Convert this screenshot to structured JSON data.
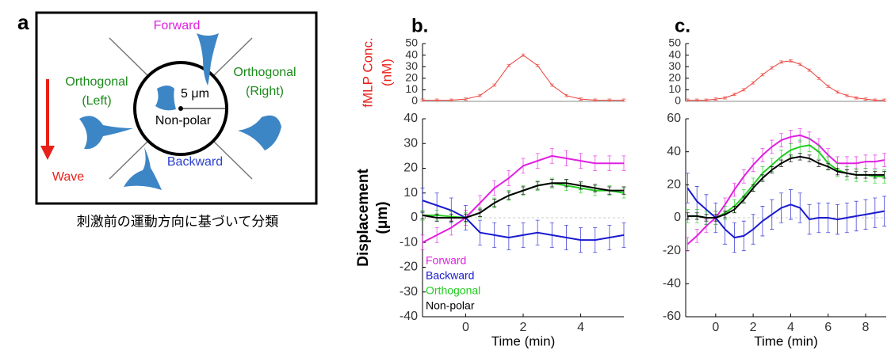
{
  "diagram": {
    "label": "a",
    "forward": "Forward",
    "orthogonal_left": [
      "Orthogonal",
      "(Left)"
    ],
    "orthogonal_right": [
      "Orthogonal",
      "(Right)"
    ],
    "backward": "Backward",
    "non_polar": "Non-polar",
    "scale": "5 μm",
    "wave": "Wave",
    "caption": "刺激前の運動方向に基づいて分類"
  },
  "chart_data": [
    {
      "type": "line",
      "title": "b.",
      "ylabel": [
        "fMLP Conc.",
        "(nM)"
      ],
      "xlim": [
        -1.5,
        5.5
      ],
      "ylim": [
        0,
        50
      ],
      "yticks": [
        0,
        10,
        20,
        30,
        40,
        50
      ],
      "x": [
        -1.5,
        -1,
        -0.5,
        0,
        0.5,
        1,
        1.5,
        2,
        2.5,
        3,
        3.5,
        4,
        4.5,
        5,
        5.5
      ],
      "series": [
        {
          "color": "#e8403a",
          "error": 1,
          "values": [
            1,
            1,
            1,
            2,
            5,
            14,
            31,
            40,
            31,
            14,
            5,
            2,
            1,
            1,
            1
          ]
        }
      ]
    },
    {
      "type": "line",
      "xlabel": "Time (min)",
      "ylabel": [
        "Displacement",
        "(μm)"
      ],
      "xlim": [
        -1.5,
        5.5
      ],
      "xticks": [
        0,
        2,
        4
      ],
      "ylim": [
        -40,
        40
      ],
      "yticks": [
        -40,
        -30,
        -20,
        -10,
        0,
        10,
        20,
        30,
        40
      ],
      "legend": "lower left",
      "x": [
        -1.5,
        -1,
        -0.5,
        0,
        0.5,
        1,
        1.5,
        2,
        2.5,
        3,
        3.5,
        4,
        4.5,
        5,
        5.5
      ],
      "series": [
        {
          "name": "Forward",
          "color": "#e020e0",
          "error": 3,
          "values": [
            -10,
            -7,
            -4,
            0,
            6,
            12,
            16,
            21,
            23,
            25,
            24,
            23,
            22,
            22,
            22
          ]
        },
        {
          "name": "Backward",
          "color": "#1a1ad0",
          "error": 5,
          "values": [
            7,
            5,
            3,
            0,
            -6,
            -7,
            -8,
            -7,
            -6,
            -7,
            -8,
            -9,
            -9,
            -8,
            -7
          ]
        },
        {
          "name": "Orthogonal",
          "color": "#22cc22",
          "error": 2,
          "values": [
            1,
            1,
            0.5,
            0,
            2,
            6,
            9,
            11,
            13,
            14,
            13,
            12,
            11,
            11,
            10
          ]
        },
        {
          "name": "Non-polar",
          "color": "#000000",
          "error": 1.5,
          "values": [
            1,
            0,
            0,
            0,
            2,
            6,
            9,
            11,
            13,
            14,
            14,
            13,
            12,
            11,
            11
          ]
        }
      ]
    },
    {
      "type": "line",
      "title": "c.",
      "xlim": [
        -1.6,
        9.1
      ],
      "ylim": [
        0,
        50
      ],
      "yticks": [
        0,
        10,
        20,
        30,
        40,
        50
      ],
      "x": [
        -1.5,
        -1,
        -0.5,
        0,
        0.5,
        1,
        1.5,
        2,
        2.5,
        3,
        3.5,
        4,
        4.5,
        5,
        5.5,
        6,
        6.5,
        7,
        7.5,
        8,
        8.5,
        9
      ],
      "series": [
        {
          "color": "#e8403a",
          "error": 1,
          "values": [
            1,
            1,
            1,
            2,
            3,
            6,
            10,
            16,
            23,
            29,
            34,
            35,
            32,
            27,
            20,
            13,
            8,
            5,
            3,
            2,
            1,
            1
          ]
        }
      ]
    },
    {
      "type": "line",
      "xlabel": "Time (min)",
      "xlim": [
        -1.6,
        9.1
      ],
      "xticks": [
        0,
        2,
        4,
        6,
        8
      ],
      "ylim": [
        -60,
        60
      ],
      "yticks": [
        -60,
        -40,
        -20,
        0,
        20,
        40,
        60
      ],
      "x": [
        -1.5,
        -1,
        -0.5,
        0,
        0.5,
        1,
        1.5,
        2,
        2.5,
        3,
        3.5,
        4,
        4.5,
        5,
        5.5,
        6,
        6.5,
        7,
        7.5,
        8,
        8.5,
        9
      ],
      "series": [
        {
          "color": "#e020e0",
          "error": 4,
          "values": [
            -16,
            -11,
            -5,
            0,
            8,
            17,
            25,
            32,
            38,
            43,
            47,
            49,
            50,
            48,
            44,
            38,
            33,
            33,
            33,
            34,
            34,
            35
          ]
        },
        {
          "color": "#1a1ad0",
          "error": 9,
          "values": [
            18,
            10,
            5,
            0,
            -7,
            -12,
            -11,
            -7,
            -2,
            2,
            6,
            8,
            6,
            -1,
            0,
            0,
            -1,
            0,
            1,
            2,
            3,
            4
          ]
        },
        {
          "color": "#22cc22",
          "error": 4,
          "values": [
            1,
            1,
            0,
            0,
            3,
            7,
            13,
            20,
            27,
            32,
            37,
            41,
            43,
            44,
            40,
            33,
            29,
            27,
            26,
            26,
            25,
            25
          ]
        },
        {
          "color": "#000000",
          "error": 2,
          "values": [
            1,
            1,
            0,
            0,
            2,
            5,
            11,
            18,
            24,
            29,
            33,
            36,
            37,
            36,
            33,
            31,
            28,
            27,
            26,
            26,
            26,
            26
          ]
        }
      ]
    }
  ]
}
